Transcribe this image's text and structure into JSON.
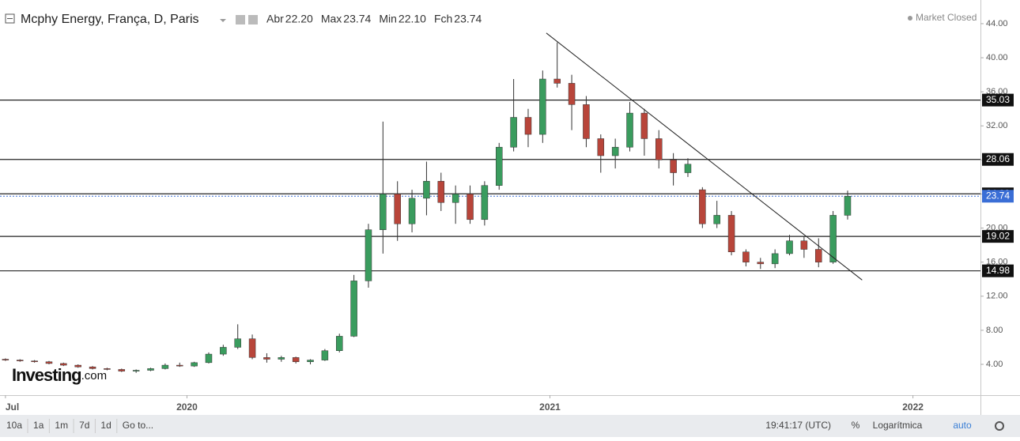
{
  "chart_data": {
    "type": "candlestick",
    "title": "Mcphy Energy, França, D, Paris",
    "ohlc_summary": [
      {
        "label": "Abr",
        "value": 22.2
      },
      {
        "label": "Max",
        "value": 23.74
      },
      {
        "label": "Min",
        "value": 22.1
      },
      {
        "label": "Fch",
        "value": 23.74
      }
    ],
    "status": "Market Closed",
    "up_color": "#3a9c5e",
    "down_color": "#b8453a",
    "x": [
      2019.5,
      2019.54,
      2019.58,
      2019.62,
      2019.66,
      2019.7,
      2019.74,
      2019.78,
      2019.82,
      2019.86,
      2019.9,
      2019.94,
      2019.98,
      2020.02,
      2020.06,
      2020.1,
      2020.14,
      2020.18,
      2020.22,
      2020.26,
      2020.3,
      2020.34,
      2020.38,
      2020.42,
      2020.46,
      2020.5,
      2020.54,
      2020.58,
      2020.62,
      2020.66,
      2020.7,
      2020.74,
      2020.78,
      2020.82,
      2020.86,
      2020.9,
      2020.94,
      2020.98,
      2021.02,
      2021.06,
      2021.1,
      2021.14,
      2021.18,
      2021.22,
      2021.26,
      2021.3,
      2021.34,
      2021.38,
      2021.42,
      2021.46,
      2021.5,
      2021.54,
      2021.58,
      2021.62,
      2021.66,
      2021.7,
      2021.74,
      2021.78,
      2021.82
    ],
    "open": [
      4.6,
      4.5,
      4.4,
      4.3,
      4.1,
      3.9,
      3.7,
      3.5,
      3.4,
      3.2,
      3.3,
      3.5,
      3.9,
      3.8,
      4.2,
      5.2,
      6.0,
      7.0,
      4.8,
      4.6,
      4.8,
      4.3,
      4.5,
      5.6,
      7.3,
      13.8,
      19.8,
      24.0,
      20.5,
      23.5,
      25.5,
      23.0,
      24.0,
      21.0,
      25.0,
      29.5,
      33.0,
      31.0,
      37.5,
      37.0,
      34.5,
      30.5,
      28.5,
      29.5,
      33.5,
      30.5,
      28.0,
      26.5,
      24.5,
      20.5,
      21.5,
      17.2,
      16.0,
      15.8,
      17.0,
      18.5,
      17.5,
      16.0,
      21.5
    ],
    "high": [
      4.7,
      4.6,
      4.5,
      4.4,
      4.2,
      4.0,
      3.8,
      3.6,
      3.5,
      3.4,
      3.6,
      4.1,
      4.2,
      4.3,
      5.4,
      6.3,
      8.7,
      7.5,
      5.3,
      5.0,
      4.9,
      4.6,
      5.8,
      7.6,
      14.5,
      20.5,
      32.5,
      25.5,
      24.5,
      27.8,
      26.5,
      25.0,
      25.0,
      25.5,
      30.0,
      37.5,
      34.0,
      38.5,
      41.8,
      38.0,
      35.5,
      31.0,
      30.5,
      34.8,
      34.0,
      31.5,
      28.8,
      28.2,
      24.8,
      23.2,
      22.0,
      17.5,
      16.5,
      17.5,
      19.2,
      19.0,
      18.8,
      22.0,
      24.4
    ],
    "low": [
      4.4,
      4.3,
      4.2,
      4.0,
      3.8,
      3.6,
      3.4,
      3.3,
      3.1,
      3.0,
      3.2,
      3.4,
      3.7,
      3.7,
      4.1,
      5.0,
      5.8,
      4.6,
      4.2,
      4.3,
      4.1,
      4.0,
      4.4,
      5.4,
      7.2,
      13.0,
      17.0,
      18.5,
      19.5,
      21.5,
      22.0,
      20.5,
      20.5,
      20.3,
      24.5,
      29.0,
      29.5,
      30.0,
      36.5,
      31.5,
      29.5,
      26.5,
      27.0,
      29.0,
      28.5,
      27.0,
      25.0,
      26.0,
      20.0,
      20.0,
      16.8,
      15.5,
      15.2,
      15.3,
      16.8,
      16.5,
      15.4,
      15.8,
      21.0
    ],
    "close": [
      4.5,
      4.4,
      4.3,
      4.1,
      3.9,
      3.7,
      3.5,
      3.4,
      3.2,
      3.3,
      3.5,
      3.9,
      3.8,
      4.2,
      5.2,
      6.0,
      7.0,
      4.8,
      4.6,
      4.8,
      4.3,
      4.5,
      5.6,
      7.3,
      13.8,
      19.8,
      24.0,
      20.5,
      23.5,
      25.5,
      23.0,
      24.0,
      21.0,
      25.0,
      29.5,
      33.0,
      31.0,
      37.5,
      37.0,
      34.5,
      30.5,
      28.5,
      29.5,
      33.5,
      30.5,
      28.0,
      26.5,
      27.5,
      20.5,
      21.5,
      17.2,
      16.0,
      15.8,
      17.0,
      18.5,
      17.5,
      16.0,
      21.5,
      23.74
    ],
    "levels": [
      35.03,
      28.06,
      24.02,
      19.02,
      14.98
    ],
    "last_price": 23.74,
    "trendline": {
      "x": [
        2020.99,
        2021.86
      ],
      "values": [
        42.9,
        13.9
      ]
    },
    "xlim": [
      2019.485,
      2022.186
    ],
    "xticks": [
      {
        "value": 2019.5,
        "label": "Jul"
      },
      2020,
      2021,
      2022
    ],
    "ylim": [
      0.38,
      46.78
    ],
    "yticks": [
      {
        "value": 4,
        "label": "4.00"
      },
      {
        "value": 8,
        "label": "8.00"
      },
      {
        "value": 12,
        "label": "12.00"
      },
      {
        "value": 16,
        "label": "16.00"
      },
      {
        "value": 20,
        "label": "20.00"
      },
      {
        "value": 24,
        "label": "24.00"
      },
      {
        "value": 28,
        "label": "28.00"
      },
      {
        "value": 32,
        "label": "32.00"
      },
      {
        "value": 36,
        "label": "36.00"
      },
      {
        "value": 40,
        "label": "40.00"
      },
      {
        "value": 44,
        "label": "44.00"
      }
    ],
    "logo": {
      "brand": "Investing",
      "suffix": ".com"
    },
    "toolbar": [
      "10a",
      "1a",
      "1m",
      "7d",
      "1d",
      "Go to..."
    ],
    "time": "19:41:17 (UTC)",
    "options": [
      "%",
      "Logarítmica",
      "auto"
    ]
  }
}
